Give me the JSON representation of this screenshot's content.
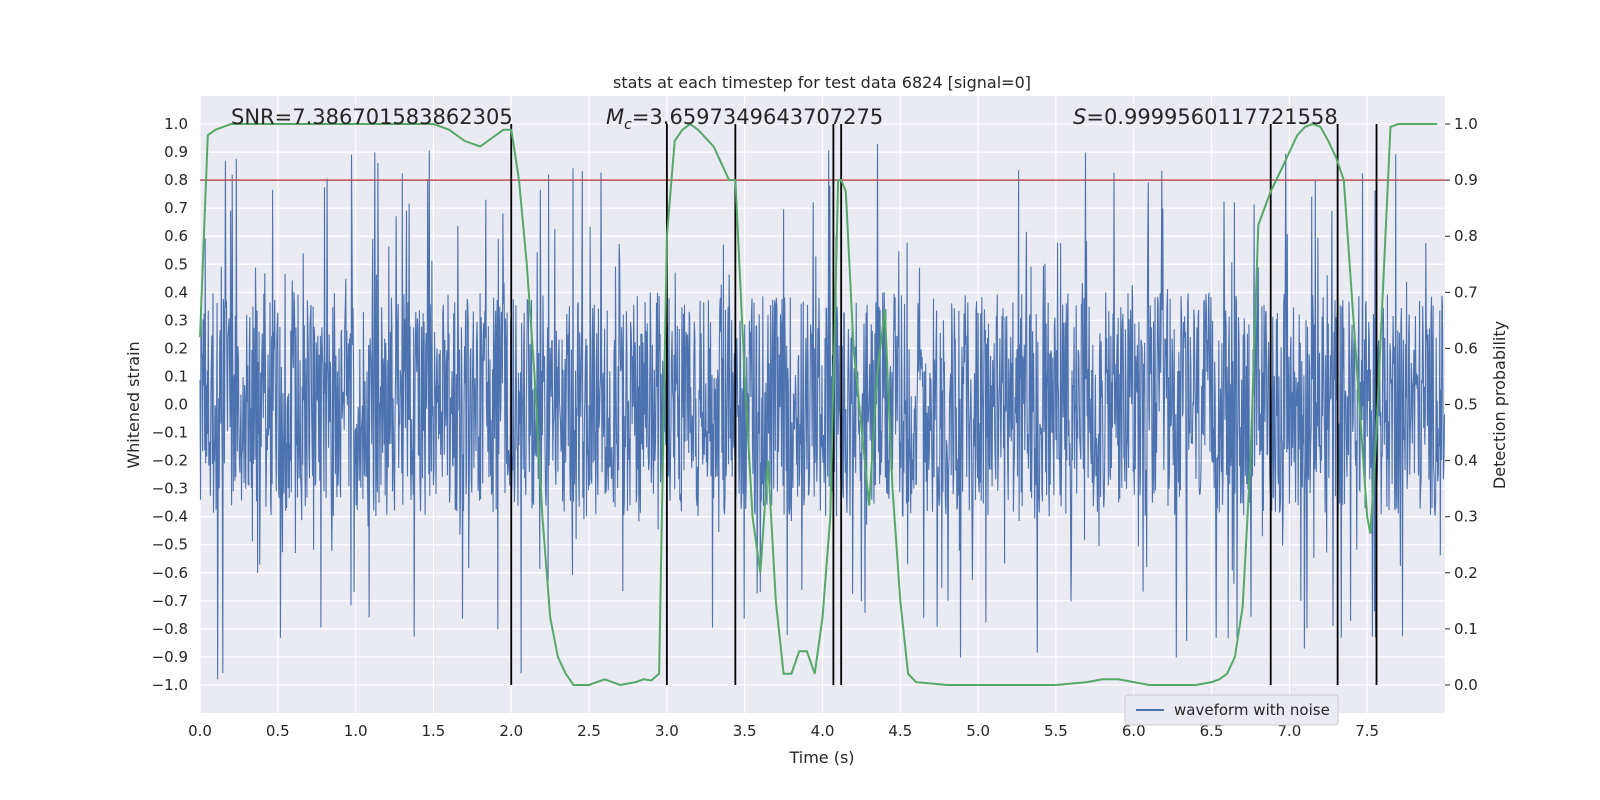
{
  "chart_data": {
    "type": "line",
    "title": "stats at each timestep for test data 6824 [signal=0]",
    "xlabel": "Time (s)",
    "ylabel": "Whitened strain",
    "y2label": "Detection probability",
    "xlim": [
      0.0,
      8.0
    ],
    "ylim": [
      -1.1,
      1.1
    ],
    "y2lim": [
      -0.05,
      1.05
    ],
    "xticks": [
      "0.0",
      "0.5",
      "1.0",
      "1.5",
      "2.0",
      "2.5",
      "3.0",
      "3.5",
      "4.0",
      "4.5",
      "5.0",
      "5.5",
      "6.0",
      "6.5",
      "7.0",
      "7.5"
    ],
    "yticks": [
      "1.0",
      "0.9",
      "0.8",
      "0.7",
      "0.6",
      "0.5",
      "0.4",
      "0.3",
      "0.2",
      "0.1",
      "0.0",
      "−0.1",
      "−0.2",
      "−0.3",
      "−0.4",
      "−0.5",
      "−0.6",
      "−0.7",
      "−0.8",
      "−0.9",
      "−1.0"
    ],
    "y2ticks": [
      "1.0",
      "0.9",
      "0.8",
      "0.7",
      "0.6",
      "0.5",
      "0.4",
      "0.3",
      "0.2",
      "0.1",
      "0.0"
    ],
    "grid": true,
    "legend": {
      "placement": "lower-right",
      "entries": [
        "waveform with noise"
      ]
    },
    "annotations": {
      "snr": "SNR=7.386701583862305",
      "mc_symbol": "M",
      "mc_sub": "c",
      "mc_value": "=3.6597349643707275",
      "s_symbol": "S",
      "s_value": "=0.9999560117721558"
    },
    "threshold": {
      "y2": 0.9,
      "color": "#c44e52"
    },
    "vertical_lines_x": [
      2.0,
      3.0,
      3.44,
      4.07,
      4.12,
      6.88,
      7.31,
      7.56
    ],
    "waveform": {
      "name": "waveform with noise",
      "color": "#4c72b0",
      "duration_s": 8.0,
      "typical_range": [
        -0.4,
        0.4
      ],
      "max_abs": 1.0
    },
    "probability": {
      "color": "#55a868",
      "x": [
        0.0,
        0.05,
        0.1,
        0.2,
        0.3,
        0.5,
        1.0,
        1.5,
        1.6,
        1.7,
        1.8,
        1.9,
        1.95,
        2.0,
        2.05,
        2.1,
        2.15,
        2.2,
        2.25,
        2.3,
        2.35,
        2.4,
        2.5,
        2.6,
        2.7,
        2.8,
        2.85,
        2.9,
        2.95,
        3.0,
        3.05,
        3.1,
        3.15,
        3.2,
        3.3,
        3.4,
        3.44,
        3.5,
        3.55,
        3.6,
        3.65,
        3.7,
        3.75,
        3.8,
        3.85,
        3.9,
        3.95,
        4.0,
        4.05,
        4.1,
        4.12,
        4.15,
        4.2,
        4.3,
        4.35,
        4.4,
        4.45,
        4.5,
        4.55,
        4.6,
        4.8,
        5.0,
        5.5,
        5.7,
        5.8,
        5.9,
        6.0,
        6.1,
        6.2,
        6.4,
        6.5,
        6.55,
        6.6,
        6.65,
        6.7,
        6.75,
        6.8,
        6.88,
        6.95,
        7.0,
        7.05,
        7.1,
        7.15,
        7.2,
        7.25,
        7.3,
        7.35,
        7.4,
        7.45,
        7.5,
        7.52,
        7.55,
        7.6,
        7.65,
        7.7,
        7.8,
        7.95
      ],
      "y": [
        0.62,
        0.98,
        0.99,
        1.0,
        1.0,
        1.0,
        1.0,
        1.0,
        0.99,
        0.97,
        0.96,
        0.98,
        0.99,
        0.99,
        0.9,
        0.75,
        0.55,
        0.3,
        0.12,
        0.05,
        0.02,
        0.0,
        0.0,
        0.01,
        0.0,
        0.005,
        0.01,
        0.008,
        0.02,
        0.8,
        0.97,
        0.99,
        1.0,
        0.99,
        0.96,
        0.9,
        0.9,
        0.55,
        0.3,
        0.2,
        0.4,
        0.15,
        0.02,
        0.02,
        0.06,
        0.06,
        0.02,
        0.12,
        0.3,
        0.9,
        0.9,
        0.88,
        0.6,
        0.32,
        0.55,
        0.67,
        0.35,
        0.15,
        0.02,
        0.005,
        0.0,
        0.0,
        0.0,
        0.005,
        0.01,
        0.01,
        0.005,
        0.0,
        0.0,
        0.0,
        0.005,
        0.01,
        0.02,
        0.05,
        0.14,
        0.4,
        0.82,
        0.88,
        0.92,
        0.95,
        0.98,
        0.995,
        1.0,
        0.995,
        0.97,
        0.94,
        0.9,
        0.7,
        0.5,
        0.3,
        0.27,
        0.4,
        0.7,
        0.995,
        1.0,
        1.0,
        1.0
      ]
    }
  }
}
